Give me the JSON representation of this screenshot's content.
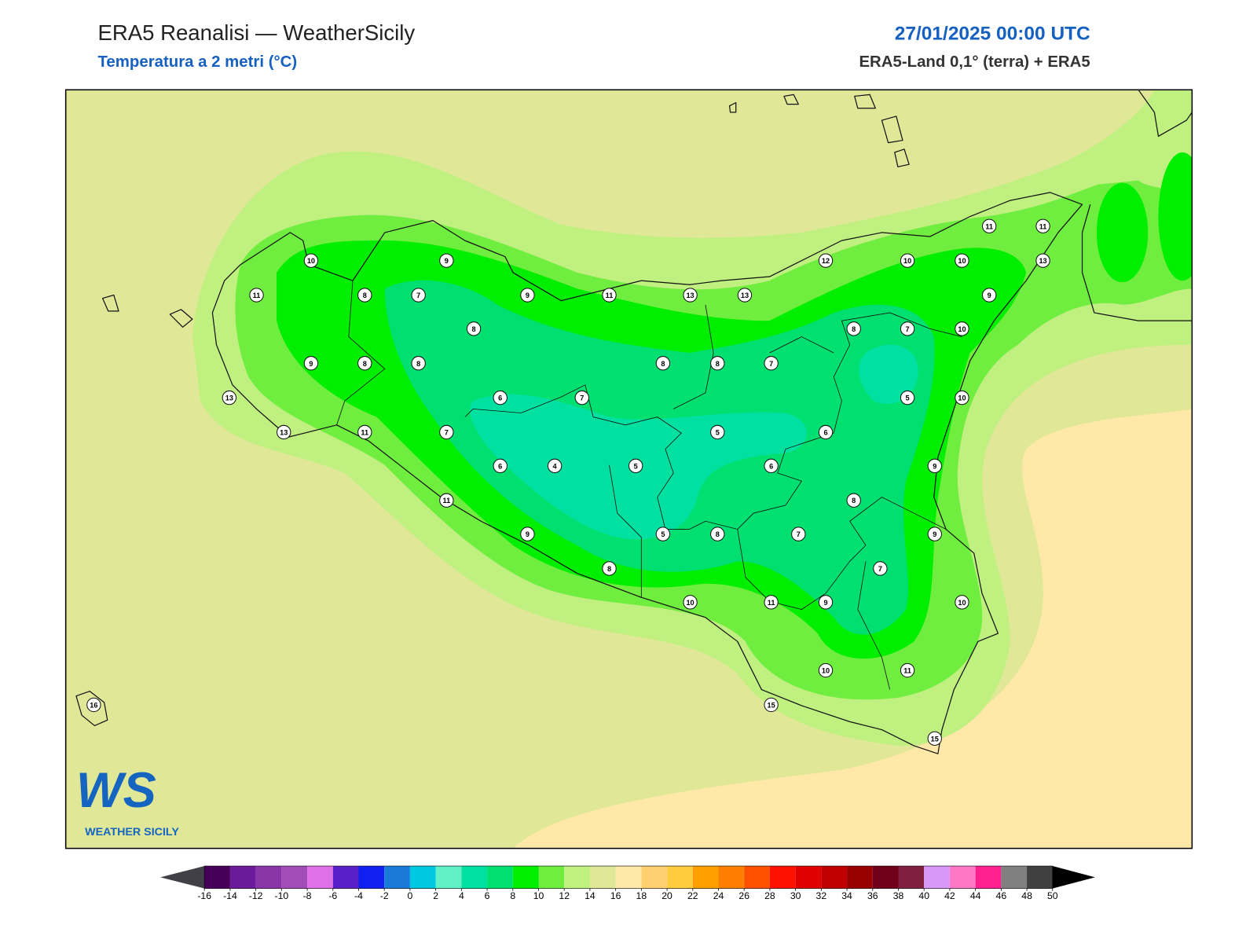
{
  "header": {
    "title": "ERA5 Reanalisi — WeatherSicily",
    "subtitle": "Temperatura a 2 metri (°C)",
    "datetime": "27/01/2025 00:00 UTC",
    "source": "ERA5-Land 0,1° (terra) + ERA5"
  },
  "map": {
    "station_values": [
      10,
      9,
      11,
      8,
      7,
      9,
      11,
      13,
      13,
      12,
      10,
      10,
      11,
      11,
      13,
      9,
      8,
      8,
      7,
      10,
      9,
      8,
      8,
      8,
      8,
      7,
      6,
      7,
      5,
      10,
      13,
      13,
      11,
      7,
      5,
      6,
      6,
      4,
      5,
      6,
      9,
      11,
      8,
      9,
      5,
      8,
      7,
      9,
      8,
      7,
      10,
      11,
      9,
      10,
      10,
      11,
      15,
      15,
      16
    ]
  },
  "colorbar": {
    "ticks": [
      -16,
      -14,
      -12,
      -10,
      -8,
      -6,
      -4,
      -2,
      0,
      2,
      4,
      6,
      8,
      10,
      12,
      14,
      16,
      18,
      20,
      22,
      24,
      26,
      28,
      30,
      32,
      34,
      36,
      38,
      40,
      42,
      44,
      46,
      48,
      50
    ],
    "colors": [
      "#46005a",
      "#6a1a9a",
      "#8a35a8",
      "#a24cb8",
      "#e070e8",
      "#5a20c8",
      "#1020f0",
      "#1a7ad8",
      "#00c8e0",
      "#60f0c8",
      "#00e0a0",
      "#00e070",
      "#00ee00",
      "#70ee40",
      "#c0f080",
      "#e0e898",
      "#ffe8a8",
      "#ffd070",
      "#ffcc40",
      "#ffa000",
      "#ff8000",
      "#ff5000",
      "#ff1000",
      "#e00000",
      "#c00000",
      "#980000",
      "#700018",
      "#802040",
      "#d898f8",
      "#ff78c8",
      "#ff2090",
      "#808080",
      "#404040"
    ],
    "under_color": "#404046",
    "over_color": "#000000"
  },
  "logo": {
    "text": "WS",
    "caption": "WEATHER SICILY"
  }
}
